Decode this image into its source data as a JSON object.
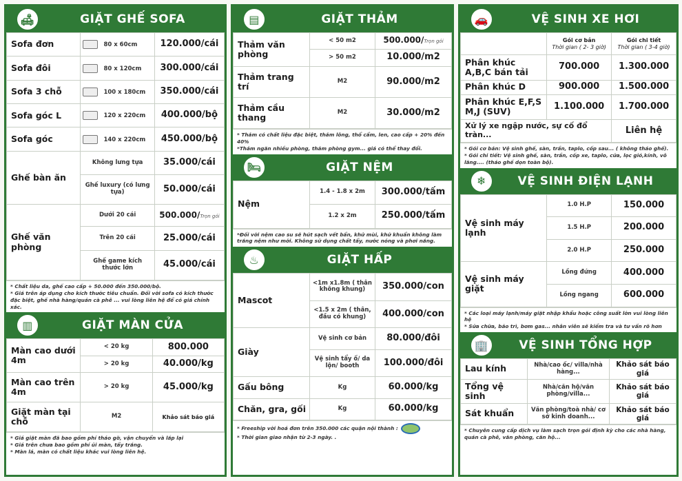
{
  "colors": {
    "brand": "#2f7a36"
  },
  "sofa": {
    "title": "GIẶT GHẾ SOFA",
    "icon": "sofa-icon",
    "groups": [
      {
        "name": "Sofa đơn",
        "items": [
          {
            "spec": "80 x 60cm",
            "price": "120.000/cái"
          }
        ]
      },
      {
        "name": "Sofa đôi",
        "items": [
          {
            "spec": "80 x 120cm",
            "price": "300.000/cái"
          }
        ]
      },
      {
        "name": "Sofa 3 chỗ",
        "items": [
          {
            "spec": "100 x 180cm",
            "price": "350.000/cái"
          }
        ]
      },
      {
        "name": "Sofa góc L",
        "items": [
          {
            "spec": "120 x 220cm",
            "price": "400.000/bộ"
          }
        ]
      },
      {
        "name": "Sofa góc",
        "items": [
          {
            "spec": "140 x 220cm",
            "price": "450.000/bộ"
          }
        ]
      },
      {
        "name": "Ghế bàn ăn",
        "items": [
          {
            "spec": "Không lưng tựa",
            "price": "35.000/cái"
          },
          {
            "spec": "Ghế luxury (có lưng tựa)",
            "price": "50.000/cái"
          }
        ]
      },
      {
        "name": "Ghế văn phòng",
        "items": [
          {
            "spec": "Dưới 20 cái",
            "price": "500.000/",
            "note": "Trọn gói"
          },
          {
            "spec": "Trên 20 cái",
            "price": "25.000/cái"
          },
          {
            "spec": "Ghế game kích thước lớn",
            "price": "45.000/cái"
          }
        ]
      }
    ],
    "notes": [
      "* Chất liệu da, ghế cao cấp + 50.000 đến 350.000/bộ.",
      "* Giá trên áp dụng cho kích thước tiêu chuẩn. Đối với sofa có kích thước đặc biệt, ghế nhà hàng/quán cà phê ... vui lòng liên hệ để có giá chính xác."
    ]
  },
  "curtain": {
    "title": "GIẶT MÀN CỬA",
    "icon": "curtain-icon",
    "groups": [
      {
        "name": "Màn cao dưới 4m",
        "items": [
          {
            "spec": "< 20 kg",
            "price": "800.000"
          },
          {
            "spec": "> 20 kg",
            "price": "40.000/kg"
          }
        ]
      },
      {
        "name": "Màn cao trên 4m",
        "items": [
          {
            "spec": "> 20 kg",
            "price": "45.000/kg"
          }
        ]
      },
      {
        "name": "Giặt màn tại chỗ",
        "items": [
          {
            "spec": "M2",
            "price": "Khảo sát báo giá",
            "small": true
          }
        ]
      }
    ],
    "notes": [
      "* Giá giặt màn đã bao gồm phí tháo gỡ, vận chuyển và lắp lại",
      "* Giá trên chưa bao gồm phí ủi màn, tẩy trắng.",
      "* Màn lá, màn có chất liệu khác vui lòng liên hệ."
    ]
  },
  "carpet": {
    "title": "GIẶT THẢM",
    "icon": "carpet-icon",
    "groups": [
      {
        "name": "Thảm văn phòng",
        "items": [
          {
            "spec": "< 50 m2",
            "price": "500.000/",
            "note": "Trọn gói"
          },
          {
            "spec": "> 50 m2",
            "price": "10.000/m2"
          }
        ]
      },
      {
        "name": "Thảm trang trí",
        "items": [
          {
            "spec": "M2",
            "price": "90.000/m2"
          }
        ]
      },
      {
        "name": "Thảm cầu thang",
        "items": [
          {
            "spec": "M2",
            "price": "30.000/m2"
          }
        ]
      }
    ],
    "notes": [
      "* Thảm có chất liệu đặc biệt, thảm lông, thổ cẩm, len, cao cấp + 20% đến 40%",
      "*Thảm ngăn nhiều phòng, thảm phòng gym... giá có thể thay đổi."
    ]
  },
  "mattress": {
    "title": "GIẶT NỆM",
    "icon": "bed-icon",
    "groups": [
      {
        "name": "Nệm",
        "items": [
          {
            "spec": "1.4 - 1.8 x 2m",
            "price": "300.000/tấm"
          },
          {
            "spec": "1.2 x 2m",
            "price": "250.000/tấm"
          }
        ]
      }
    ],
    "notes": [
      "*Đối với nệm cao su sẽ hút sạch vết bẩn, khử mùi, khử khuẩn không làm trắng nệm như mới. Không sử dụng chất tẩy, nước nóng và phơi nắng."
    ]
  },
  "steam": {
    "title": "GIẶT HẤP",
    "icon": "steam-icon",
    "groups": [
      {
        "name": "Mascot",
        "items": [
          {
            "spec": "<1m x1.8m ( thân không khung)",
            "price": "350.000/con"
          },
          {
            "spec": "<1.5 x 2m ( thân, đầu có khung)",
            "price": "400.000/con"
          }
        ]
      },
      {
        "name": "Giày",
        "items": [
          {
            "spec": "Vệ sinh cơ bản",
            "price": "80.000/đôi"
          },
          {
            "spec": "Vệ sinh tẩy ố/ da lộn/ booth",
            "price": "100.000/đôi"
          }
        ]
      },
      {
        "name": "Gấu bông",
        "items": [
          {
            "spec": "Kg",
            "price": "60.000/kg"
          }
        ]
      },
      {
        "name": "Chăn, gra, gối",
        "items": [
          {
            "spec": "Kg",
            "price": "60.000/kg"
          }
        ]
      }
    ],
    "notes": [
      "* Freeship với hoá đơn trên 350.000 các quận nội thành :",
      "* Thời gian giao nhận từ 2-3 ngày. ."
    ]
  },
  "car": {
    "title": "VỆ SINH XE HƠI",
    "icon": "car-icon",
    "columns": [
      {
        "label": "Gói cơ bản",
        "sub": "Thời gian ( 2- 3 giờ)"
      },
      {
        "label": "Gói chi tiết",
        "sub": "Thời gian ( 3-4 giờ)"
      }
    ],
    "rows": [
      {
        "name": "Phân khúc A,B,C bán tải",
        "basic": "700.000",
        "detail": "1.300.000"
      },
      {
        "name": "Phân khúc D",
        "basic": "900.000",
        "detail": "1.500.000"
      },
      {
        "name": "Phân khúc E,F,S M,J (SUV)",
        "basic": "1.100.000",
        "detail": "1.700.000"
      }
    ],
    "special": {
      "name": "Xử lý xe ngập nước, sự cố đổ tràn...",
      "price": "Liên hệ"
    },
    "notes": [
      "* Gói cơ bản: Vệ sinh ghế, sàn, trần, taplo, cốp sau... ( không tháo ghế).",
      "* Gói chi tiết: Vệ sinh ghế, sàn, trần, cốp xe, taplo, cửa, lọc gió,kính, vô lăng.... (tháo ghế dọn toàn bộ)."
    ]
  },
  "ac": {
    "title": "VỆ SINH ĐIỆN LẠNH",
    "icon": "air-conditioner-icon",
    "groups": [
      {
        "name": "Vệ sinh máy lạnh",
        "items": [
          {
            "spec": "1.0 H.P",
            "price": "150.000"
          },
          {
            "spec": "1.5 H.P",
            "price": "200.000"
          },
          {
            "spec": "2.0 H.P",
            "price": "250.000"
          }
        ]
      },
      {
        "name": "Vệ sinh máy giặt",
        "items": [
          {
            "spec": "Lồng đứng",
            "price": "400.000"
          },
          {
            "spec": "Lồng ngang",
            "price": "600.000"
          }
        ]
      }
    ],
    "notes": [
      "* Các loại máy lạnh/máy giặt nhập khẩu hoặc công suất lớn vui lòng liên hệ",
      "* Sửa chữa, bảo trì, bơm gas... nhân viên sẽ kiểm tra và tư vấn rõ hơn"
    ]
  },
  "general": {
    "title": "VỆ SINH TỔNG HỢP",
    "icon": "building-icon",
    "groups": [
      {
        "name": "Lau kính",
        "items": [
          {
            "spec": "Nhà/cao ốc/ villa/nhà hàng...",
            "price": "Khảo sát báo giá",
            "mid": true
          }
        ]
      },
      {
        "name": "Tổng vệ sinh",
        "items": [
          {
            "spec": "Nhà/căn hộ/văn phòng/villa...",
            "price": "Khảo sát báo giá",
            "mid": true
          }
        ]
      },
      {
        "name": "Sát khuẩn",
        "items": [
          {
            "spec": "Văn phòng/toà nhà/ cơ sở kinh doanh...",
            "price": "Khảo sát báo giá",
            "mid": true
          }
        ]
      }
    ],
    "notes": [
      "* Chuyên cung cấp dịch vụ làm sạch trọn gói định kỳ cho các nhà hàng, quán cà phê, văn phòng, căn hộ..."
    ]
  }
}
